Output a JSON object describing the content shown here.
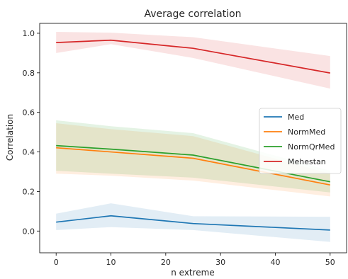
{
  "chart_data": {
    "type": "line",
    "title": "Average correlation",
    "xlabel": "n extreme",
    "ylabel": "Correlation",
    "xlim": [
      -3,
      53
    ],
    "ylim": [
      -0.11,
      1.05
    ],
    "xticks": [
      0,
      10,
      20,
      30,
      40,
      50
    ],
    "yticks": [
      0.0,
      0.2,
      0.4,
      0.6,
      0.8,
      1.0
    ],
    "grid": false,
    "legend_position": "center-right",
    "x": [
      0,
      10,
      25,
      50
    ],
    "series": [
      {
        "name": "Med",
        "color": "#1f77b4",
        "values": [
          0.045,
          0.077,
          0.038,
          0.005
        ],
        "lower": [
          0.005,
          0.02,
          0.005,
          -0.055
        ],
        "upper": [
          0.088,
          0.14,
          0.075,
          0.072
        ]
      },
      {
        "name": "NormMed",
        "color": "#ff7f0e",
        "values": [
          0.421,
          0.4,
          0.368,
          0.233
        ],
        "lower": [
          0.29,
          0.28,
          0.255,
          0.175
        ],
        "upper": [
          0.545,
          0.515,
          0.48,
          0.29
        ]
      },
      {
        "name": "NormQrMed",
        "color": "#2ca02c",
        "values": [
          0.432,
          0.414,
          0.384,
          0.249
        ],
        "lower": [
          0.305,
          0.29,
          0.27,
          0.195
        ],
        "upper": [
          0.56,
          0.53,
          0.495,
          0.305
        ]
      },
      {
        "name": "Mehestan",
        "color": "#d62728",
        "values": [
          0.953,
          0.965,
          0.924,
          0.799
        ],
        "lower": [
          0.9,
          0.945,
          0.875,
          0.72
        ],
        "upper": [
          1.007,
          1.003,
          0.98,
          0.885
        ]
      }
    ]
  }
}
